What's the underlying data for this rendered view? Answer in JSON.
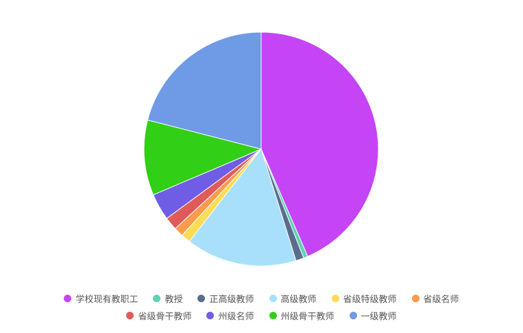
{
  "chart_data": {
    "type": "pie",
    "title": "",
    "series": [
      {
        "name": "学校现有教职工",
        "value": 43.5,
        "color": "#c544f5"
      },
      {
        "name": "教授",
        "value": 0.6,
        "color": "#5ed3b4"
      },
      {
        "name": "正高级教师",
        "value": 1.1,
        "color": "#5a6d8c"
      },
      {
        "name": "高级教师",
        "value": 15.3,
        "color": "#a8e0fc"
      },
      {
        "name": "省级特级教师",
        "value": 1.3,
        "color": "#fcdc55"
      },
      {
        "name": "省级名师",
        "value": 1.3,
        "color": "#fb9b4c"
      },
      {
        "name": "省级骨干教师",
        "value": 1.8,
        "color": "#e05a5a"
      },
      {
        "name": "州级名师",
        "value": 3.7,
        "color": "#6f5de5"
      },
      {
        "name": "州级骨干教师",
        "value": 10.4,
        "color": "#31cf16"
      },
      {
        "name": "一级教师",
        "value": 21.0,
        "color": "#6e9ae6"
      }
    ],
    "legend_position": "bottom"
  },
  "legend": {
    "rows": [
      [
        0,
        1,
        2,
        3,
        4,
        5
      ],
      [
        6,
        7,
        8,
        9
      ]
    ]
  }
}
